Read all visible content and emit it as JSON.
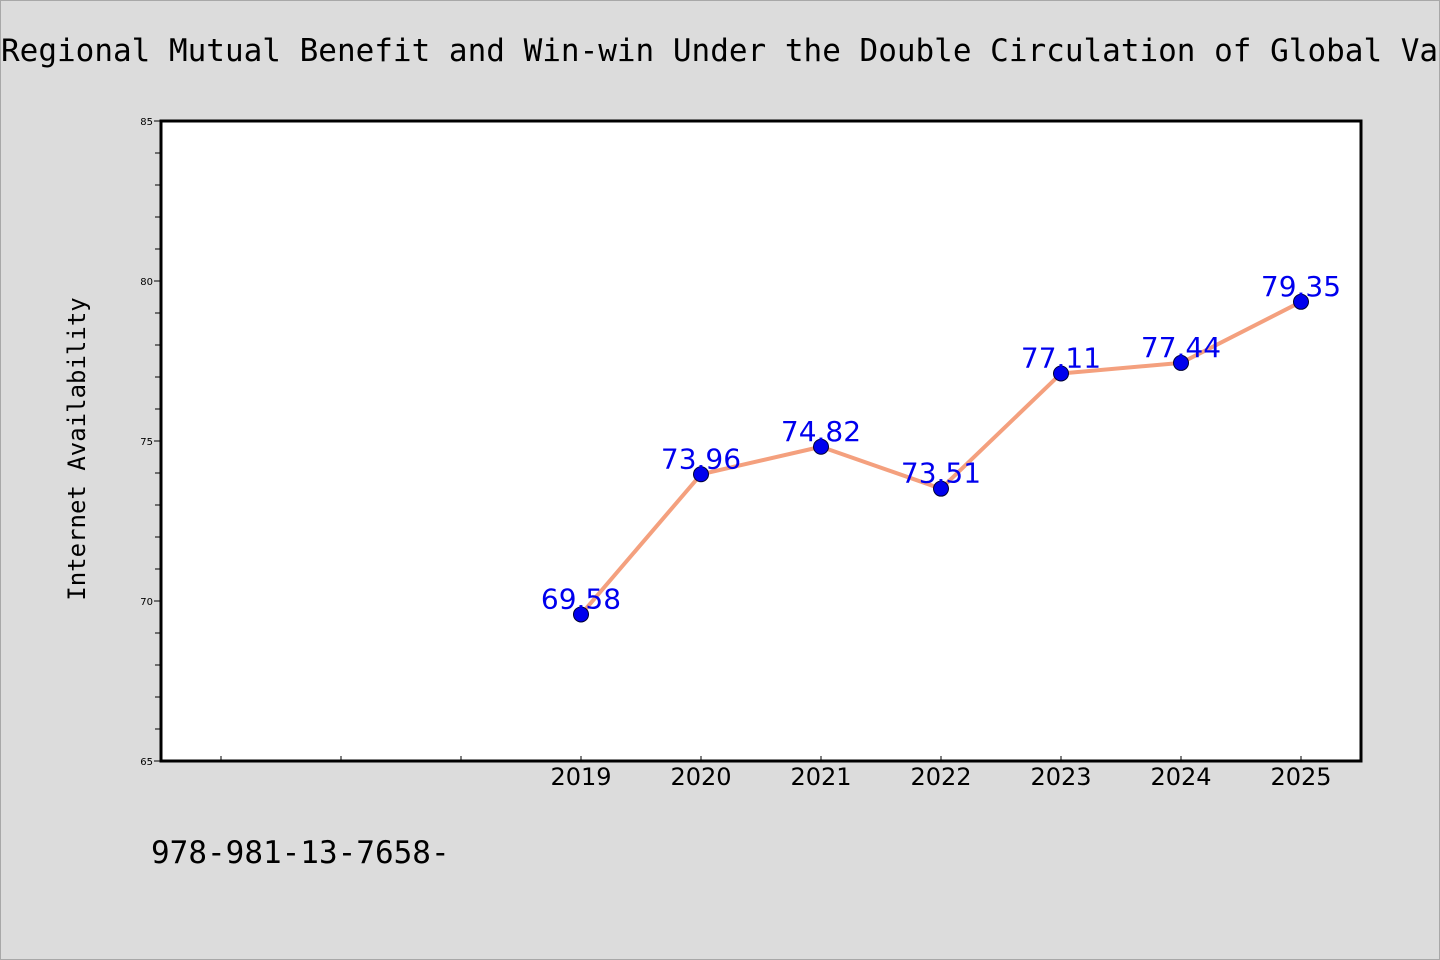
{
  "page": {
    "background": "#dcdcdc",
    "footnote": "978-981-13-7658-"
  },
  "chart_data": {
    "type": "line",
    "title": "Regional Mutual Benefit and Win-win Under the Double Circulation of Global Value",
    "xlabel": "",
    "ylabel": "Internet Availability",
    "x": [
      "2019",
      "2020",
      "2021",
      "2022",
      "2023",
      "2024",
      "2025"
    ],
    "series": [
      {
        "values": [
          69.58,
          73.96,
          74.82,
          73.51,
          77.11,
          77.44,
          79.35
        ]
      }
    ],
    "data_labels": [
      "69.58",
      "73.96",
      "74.82",
      "73.51",
      "77.11",
      "77.44",
      "79.35"
    ],
    "ylim": [
      65,
      85
    ],
    "yticks": [
      "65",
      "70",
      "75",
      "80",
      "85"
    ],
    "grid": false,
    "legend": "none",
    "colors": {
      "line": "#f4a07e",
      "marker": "#0000ee",
      "data_label": "#0000ee",
      "plot_background": "#ffffff"
    }
  }
}
